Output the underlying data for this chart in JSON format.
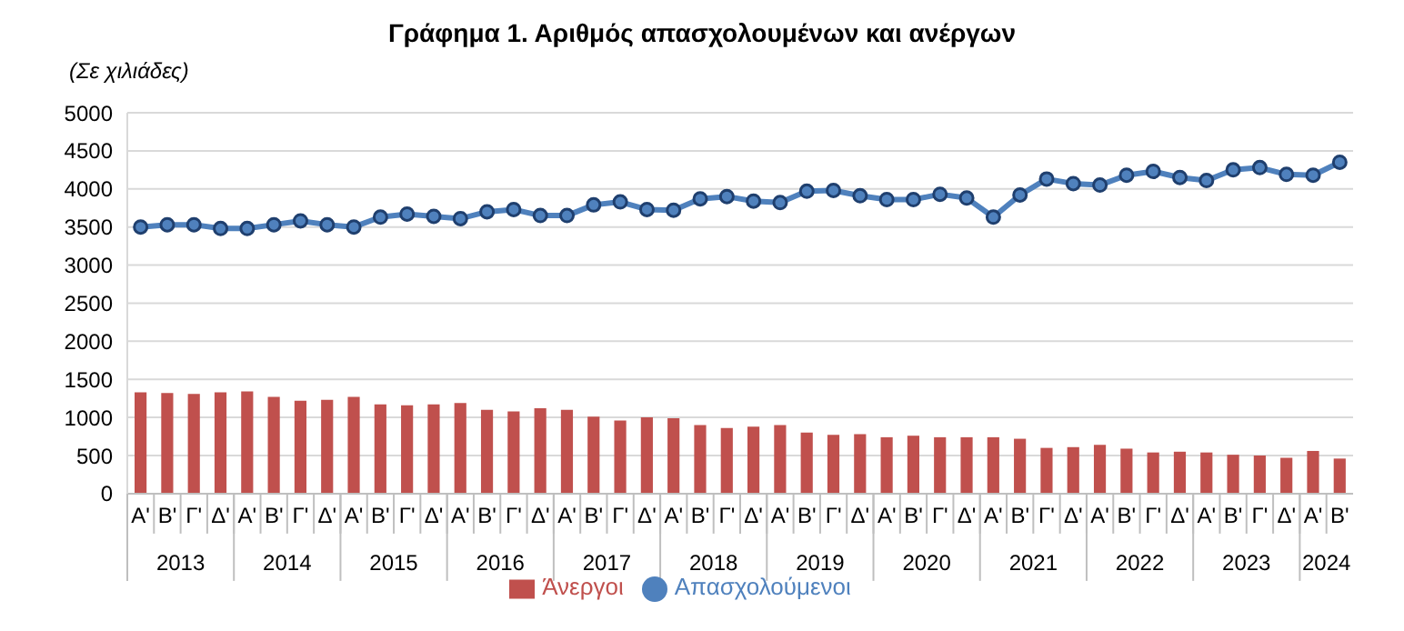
{
  "chart_data": {
    "type": "bar",
    "title": "Γράφημα 1. Αριθμός απασχολουμένων και ανέργων",
    "ylabel": "(Σε χιλιάδες)",
    "categories": [
      "Α'",
      "Β'",
      "Γ'",
      "Δ'",
      "Α'",
      "Β'",
      "Γ'",
      "Δ'",
      "Α'",
      "Β'",
      "Γ'",
      "Δ'",
      "Α'",
      "Β'",
      "Γ'",
      "Δ'",
      "Α'",
      "Β'",
      "Γ'",
      "Δ'",
      "Α'",
      "Β'",
      "Γ'",
      "Δ'",
      "Α'",
      "Β'",
      "Γ'",
      "Δ'",
      "Α'",
      "Β'",
      "Γ'",
      "Δ'",
      "Α'",
      "Β'",
      "Γ'",
      "Δ'",
      "Α'",
      "Β'",
      "Γ'",
      "Δ'",
      "Α'",
      "Β'",
      "Γ'",
      "Δ'",
      "Α'",
      "Β'"
    ],
    "annotations": [
      "2013",
      "2014",
      "2015",
      "2016",
      "2017",
      "2018",
      "2019",
      "2020",
      "2021",
      "2022",
      "2023",
      "2024"
    ],
    "series": [
      {
        "name": "Άνεργοι",
        "color": "#c0504d",
        "values": [
          1330,
          1320,
          1310,
          1330,
          1340,
          1270,
          1220,
          1230,
          1270,
          1170,
          1160,
          1170,
          1190,
          1100,
          1080,
          1120,
          1100,
          1010,
          960,
          1000,
          990,
          900,
          860,
          880,
          900,
          800,
          770,
          780,
          740,
          760,
          740,
          740,
          740,
          720,
          600,
          610,
          640,
          590,
          540,
          550,
          540,
          510,
          500,
          470,
          560,
          460
        ]
      },
      {
        "name": "Απασχολούμενοι",
        "type": "line",
        "color": "#4f81bd",
        "values": [
          3500,
          3530,
          3530,
          3480,
          3480,
          3530,
          3580,
          3530,
          3500,
          3630,
          3670,
          3640,
          3610,
          3700,
          3730,
          3650,
          3650,
          3790,
          3830,
          3730,
          3720,
          3870,
          3900,
          3840,
          3820,
          3970,
          3980,
          3910,
          3860,
          3860,
          3930,
          3880,
          3630,
          3920,
          4130,
          4070,
          4050,
          4180,
          4230,
          4150,
          4110,
          4250,
          4280,
          4190,
          4180,
          4350
        ]
      }
    ],
    "ylim": [
      0,
      5000
    ],
    "yticks": [
      0,
      500,
      1000,
      1500,
      2000,
      2500,
      3000,
      3500,
      4000,
      4500,
      5000
    ],
    "grid": "y",
    "legend": "bottom",
    "marker": "circle",
    "line_style": "solid"
  }
}
